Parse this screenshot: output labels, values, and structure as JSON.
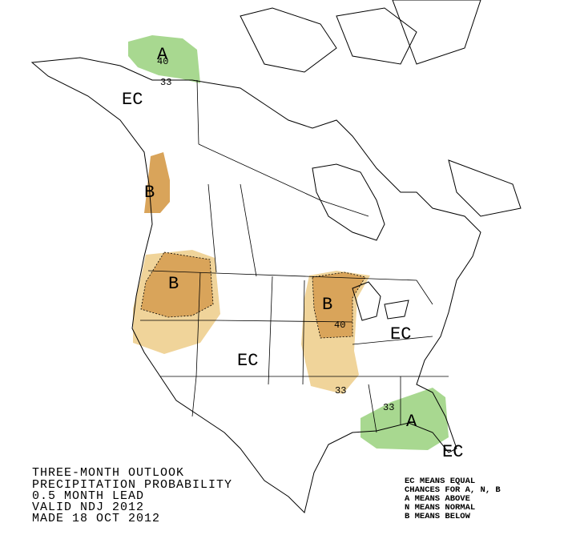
{
  "title_lines": [
    "THREE-MONTH OUTLOOK",
    "PRECIPITATION PROBABILITY",
    "0.5 MONTH LEAD",
    "VALID NDJ 2012",
    "MADE 18 OCT 2012"
  ],
  "legend_lines": [
    "EC MEANS EQUAL",
    "CHANCES FOR A, N, B",
    "A MEANS ABOVE",
    "N MEANS NORMAL",
    "B MEANS BELOW"
  ],
  "map_labels": [
    "A",
    "40",
    "33",
    "EC",
    "B",
    "B",
    "B",
    "40",
    "33",
    "EC",
    "EC",
    "33",
    "A",
    "EC"
  ]
}
